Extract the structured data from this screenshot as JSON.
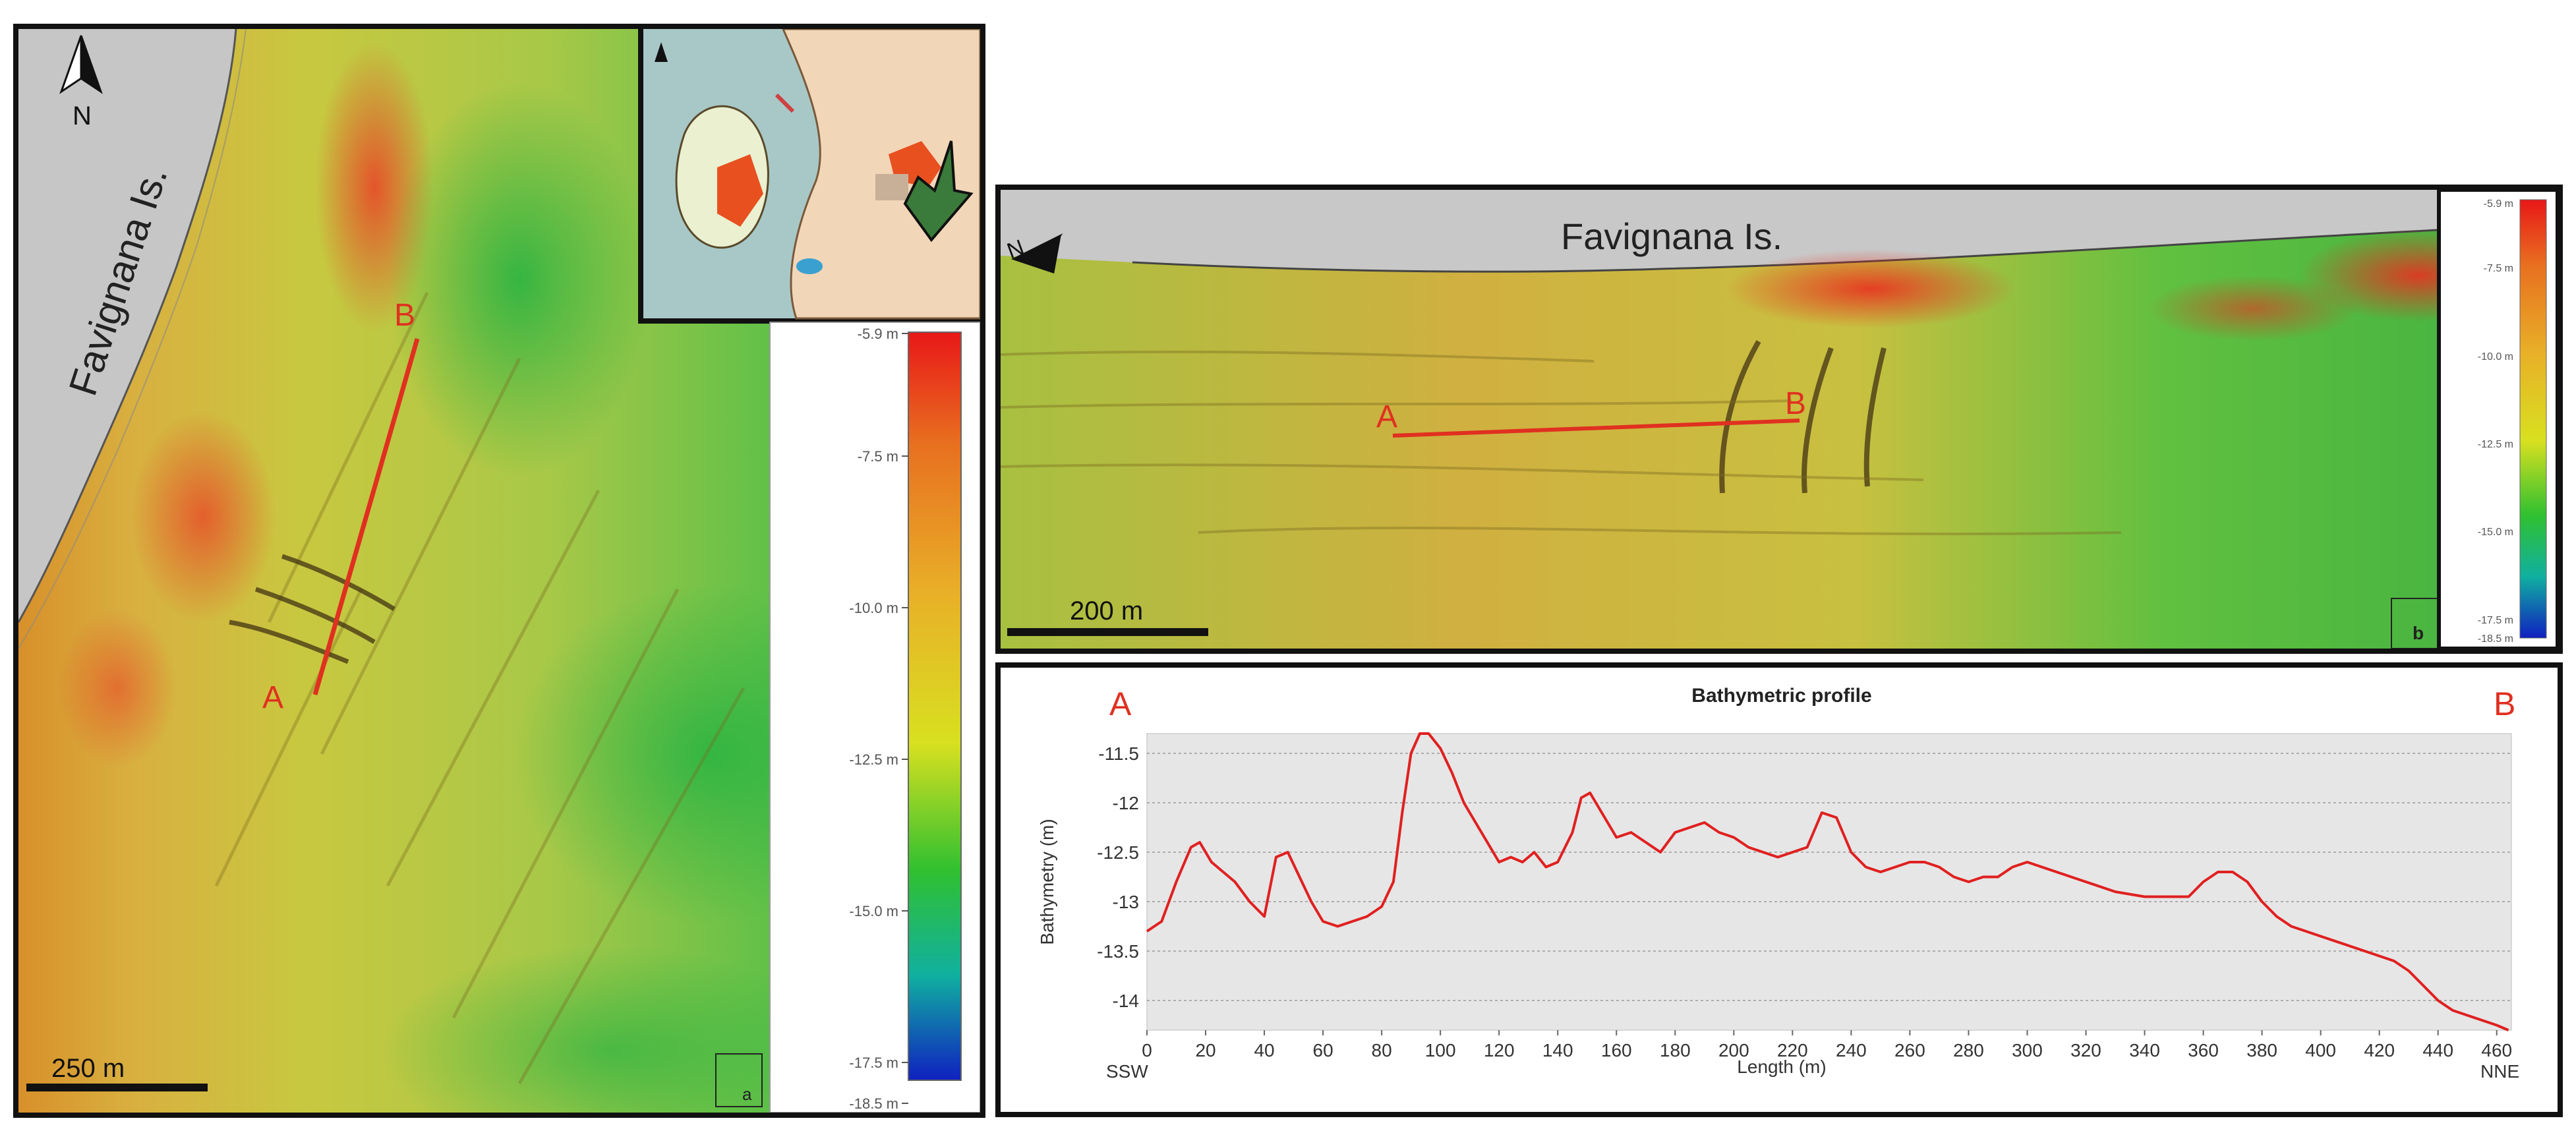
{
  "panel_a": {
    "island_label": "Favignana Is.",
    "north_label": "N",
    "scale_label": "250 m",
    "point_a": "A",
    "point_b": "B",
    "panel_letter": "a",
    "color_scale": [
      "-5.9 m",
      "-7.5 m",
      "-10.0 m",
      "-12.5 m",
      "-15.0 m",
      "-17.5 m",
      "-18.5 m"
    ]
  },
  "panel_b": {
    "island_label": "Favignana Is.",
    "north_label": "N",
    "scale_label": "200 m",
    "point_a": "A",
    "point_b": "B",
    "panel_letter": "b",
    "color_scale": [
      "-5.9 m",
      "-7.5 m",
      "-10.0 m",
      "-12.5 m",
      "-15.0 m",
      "-17.5 m",
      "-18.5 m"
    ]
  },
  "colors": {
    "profile": "#e02020",
    "transect": "#e03020",
    "land": "#c8c8c8"
  },
  "chart_data": {
    "type": "line",
    "title": "Bathymetric profile",
    "xlabel": "Length (m)",
    "ylabel": "Bathymetry (m)",
    "xlim": [
      0,
      465
    ],
    "ylim": [
      -14.3,
      -11.3
    ],
    "x_ticks": [
      0,
      20,
      40,
      60,
      80,
      100,
      120,
      140,
      160,
      180,
      200,
      220,
      240,
      260,
      280,
      300,
      320,
      340,
      360,
      380,
      400,
      420,
      440,
      460
    ],
    "y_ticks": [
      -11.5,
      -12,
      -12.5,
      -13,
      -13.5,
      -14
    ],
    "y_tick_labels": [
      "-11.5",
      "-12",
      "-12.5",
      "-13",
      "-13.5",
      "-14"
    ],
    "grid": true,
    "start_label": "A",
    "end_label": "B",
    "left_direction": "SSW",
    "right_direction": "NNE",
    "series": [
      {
        "x": [
          0,
          5,
          10,
          15,
          18,
          22,
          26,
          30,
          35,
          40,
          44,
          48,
          52,
          56,
          60,
          65,
          70,
          75,
          80,
          84,
          87,
          90,
          93,
          96,
          100,
          104,
          108,
          112,
          116,
          120,
          124,
          128,
          132,
          136,
          140,
          145,
          148,
          151,
          155,
          160,
          165,
          170,
          175,
          180,
          185,
          190,
          195,
          200,
          205,
          210,
          215,
          220,
          225,
          230,
          235,
          240,
          245,
          250,
          255,
          260,
          265,
          270,
          275,
          280,
          285,
          290,
          295,
          300,
          310,
          320,
          330,
          340,
          350,
          355,
          360,
          365,
          370,
          375,
          380,
          385,
          390,
          395,
          400,
          410,
          420,
          425,
          430,
          435,
          440,
          445,
          450,
          455,
          460,
          464
        ],
        "y": [
          -13.3,
          -13.2,
          -12.8,
          -12.45,
          -12.4,
          -12.6,
          -12.7,
          -12.8,
          -13.0,
          -13.15,
          -12.55,
          -12.5,
          -12.75,
          -13.0,
          -13.2,
          -13.25,
          -13.2,
          -13.15,
          -13.05,
          -12.8,
          -12.1,
          -11.5,
          -11.3,
          -11.3,
          -11.45,
          -11.7,
          -12.0,
          -12.2,
          -12.4,
          -12.6,
          -12.55,
          -12.6,
          -12.5,
          -12.65,
          -12.6,
          -12.3,
          -11.95,
          -11.9,
          -12.1,
          -12.35,
          -12.3,
          -12.4,
          -12.5,
          -12.3,
          -12.25,
          -12.2,
          -12.3,
          -12.35,
          -12.45,
          -12.5,
          -12.55,
          -12.5,
          -12.45,
          -12.1,
          -12.15,
          -12.5,
          -12.65,
          -12.7,
          -12.65,
          -12.6,
          -12.6,
          -12.65,
          -12.75,
          -12.8,
          -12.75,
          -12.75,
          -12.65,
          -12.6,
          -12.7,
          -12.8,
          -12.9,
          -12.95,
          -12.95,
          -12.95,
          -12.8,
          -12.7,
          -12.7,
          -12.8,
          -13.0,
          -13.15,
          -13.25,
          -13.3,
          -13.35,
          -13.45,
          -13.55,
          -13.6,
          -13.7,
          -13.85,
          -14.0,
          -14.1,
          -14.15,
          -14.2,
          -14.25,
          -14.3
        ]
      }
    ]
  }
}
